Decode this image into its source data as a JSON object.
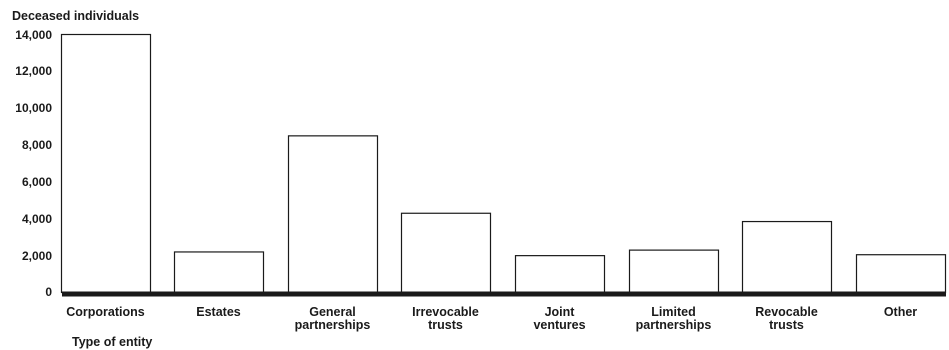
{
  "chart_data": {
    "type": "bar",
    "title": "",
    "ylabel": "Deceased individuals",
    "xlabel": "Type of entity",
    "ylim": [
      0,
      14000
    ],
    "yticks": [
      0,
      2000,
      4000,
      6000,
      8000,
      10000,
      12000,
      14000
    ],
    "ytick_labels": [
      "0",
      "2,000",
      "4,000",
      "6,000",
      "8,000",
      "10,000",
      "12,000",
      "14,000"
    ],
    "grid": false,
    "categories": [
      [
        "Corporations"
      ],
      [
        "Estates"
      ],
      [
        "General",
        "partnerships"
      ],
      [
        "Irrevocable",
        "trusts"
      ],
      [
        "Joint",
        "ventures"
      ],
      [
        "Limited",
        "partnerships"
      ],
      [
        "Revocable",
        "trusts"
      ],
      [
        "Other"
      ]
    ],
    "values": [
      14000,
      2200,
      8500,
      4300,
      2000,
      2300,
      3850,
      2050
    ],
    "colors": {
      "bar_fill": "#ffffff",
      "bar_stroke": "#1a1a1a",
      "axis": "#1a1a1a",
      "text": "#1a1a1a"
    }
  }
}
